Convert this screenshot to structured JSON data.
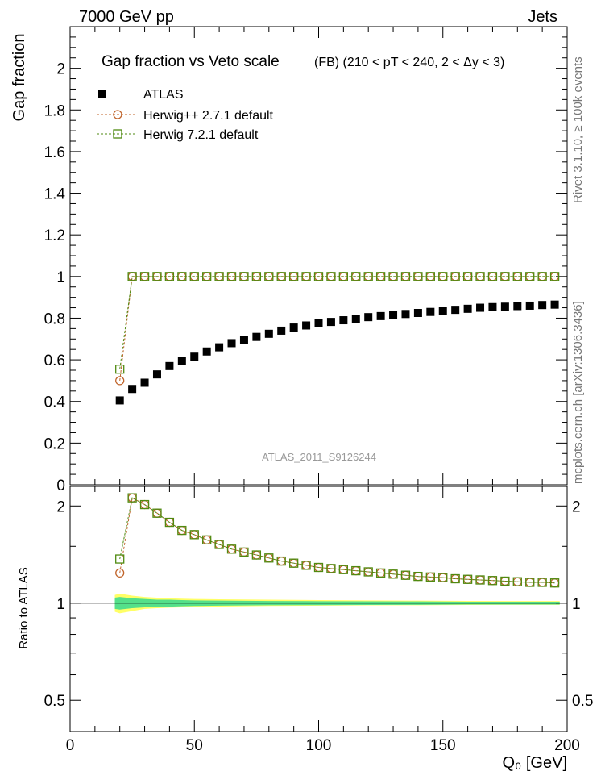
{
  "header": {
    "left": "7000 GeV pp",
    "right": "Jets"
  },
  "side_labels": {
    "top": "Rivet 3.1.10, ≥ 100k events",
    "bottom": "mcplots.cern.ch [arXiv:1306.3436]"
  },
  "watermark": "ATLAS_2011_S9126244",
  "colors": {
    "atlas": "#000000",
    "herwigpp": "#c0642b",
    "herwig7": "#4f8a10",
    "band_inner": "#54e08a",
    "band_outer": "#ffff66"
  },
  "chart_data": [
    {
      "type": "scatter",
      "title": "Gap fraction vs Veto scale",
      "subtitle": "(FB) (210 < pT < 240, 2 < Δy < 3)",
      "xlabel": "",
      "ylabel": "Gap fraction",
      "xlim": [
        0,
        200
      ],
      "ylim": [
        0,
        2.2
      ],
      "y_ticks": [
        "0",
        "0.2",
        "0.4",
        "0.6",
        "0.8",
        "1",
        "1.2",
        "1.4",
        "1.6",
        "1.8",
        "2"
      ],
      "legend_position": "top-left",
      "x": [
        20,
        25,
        30,
        35,
        40,
        45,
        50,
        55,
        60,
        65,
        70,
        75,
        80,
        85,
        90,
        95,
        100,
        105,
        110,
        115,
        120,
        125,
        130,
        135,
        140,
        145,
        150,
        155,
        160,
        165,
        170,
        175,
        180,
        185,
        190,
        195
      ],
      "series": [
        {
          "name": "ATLAS",
          "marker": "filled-square",
          "line": false,
          "values": [
            0.405,
            0.46,
            0.49,
            0.53,
            0.57,
            0.595,
            0.615,
            0.64,
            0.66,
            0.68,
            0.695,
            0.71,
            0.725,
            0.74,
            0.755,
            0.765,
            0.775,
            0.782,
            0.79,
            0.797,
            0.805,
            0.81,
            0.815,
            0.82,
            0.825,
            0.83,
            0.835,
            0.84,
            0.845,
            0.85,
            0.853,
            0.855,
            0.858,
            0.86,
            0.863,
            0.865
          ]
        },
        {
          "name": "Herwig++ 2.7.1 default",
          "marker": "open-circle",
          "line": true,
          "values": [
            0.5,
            1,
            1,
            1,
            1,
            1,
            1,
            1,
            1,
            1,
            1,
            1,
            1,
            1,
            1,
            1,
            1,
            1,
            1,
            1,
            1,
            1,
            1,
            1,
            1,
            1,
            1,
            1,
            1,
            1,
            1,
            1,
            1,
            1,
            1,
            1
          ]
        },
        {
          "name": "Herwig 7.2.1 default",
          "marker": "open-square",
          "line": true,
          "values": [
            0.555,
            1,
            1,
            1,
            1,
            1,
            1,
            1,
            1,
            1,
            1,
            1,
            1,
            1,
            1,
            1,
            1,
            1,
            1,
            1,
            1,
            1,
            1,
            1,
            1,
            1,
            1,
            1,
            1,
            1,
            1,
            1,
            1,
            1,
            1,
            1
          ]
        }
      ]
    },
    {
      "type": "scatter",
      "title": "",
      "xlabel": "Q₀ [GeV]",
      "ylabel": "Ratio to ATLAS",
      "xlim": [
        0,
        200
      ],
      "ylim": [
        0.4,
        2.3
      ],
      "y_scale": "log",
      "x_ticks": [
        "0",
        "50",
        "100",
        "150",
        "200"
      ],
      "y_ticks": [
        "0.5",
        "1",
        "2"
      ],
      "x": [
        20,
        25,
        30,
        35,
        40,
        45,
        50,
        55,
        60,
        65,
        70,
        75,
        80,
        85,
        90,
        95,
        100,
        105,
        110,
        115,
        120,
        125,
        130,
        135,
        140,
        145,
        150,
        155,
        160,
        165,
        170,
        175,
        180,
        185,
        190,
        195
      ],
      "series": [
        {
          "name": "Herwig++ 2.7.1 default",
          "marker": "open-circle",
          "line": true,
          "values": [
            1.24,
            2.12,
            2.02,
            1.9,
            1.78,
            1.68,
            1.63,
            1.57,
            1.52,
            1.47,
            1.44,
            1.41,
            1.38,
            1.35,
            1.33,
            1.31,
            1.29,
            1.28,
            1.27,
            1.26,
            1.25,
            1.24,
            1.23,
            1.22,
            1.21,
            1.205,
            1.2,
            1.19,
            1.185,
            1.18,
            1.175,
            1.17,
            1.165,
            1.16,
            1.16,
            1.155
          ]
        },
        {
          "name": "Herwig 7.2.1 default",
          "marker": "open-square",
          "line": true,
          "values": [
            1.37,
            2.12,
            2.02,
            1.9,
            1.78,
            1.68,
            1.63,
            1.57,
            1.52,
            1.47,
            1.44,
            1.41,
            1.38,
            1.35,
            1.33,
            1.31,
            1.29,
            1.28,
            1.27,
            1.26,
            1.25,
            1.24,
            1.23,
            1.22,
            1.21,
            1.205,
            1.2,
            1.19,
            1.185,
            1.18,
            1.175,
            1.17,
            1.165,
            1.16,
            1.16,
            1.155
          ]
        }
      ],
      "band": {
        "x": [
          18,
          20,
          25,
          30,
          35,
          40,
          45,
          50,
          60,
          80,
          100,
          120,
          140,
          160,
          180,
          197
        ],
        "inner_low": [
          0.96,
          0.955,
          0.965,
          0.97,
          0.975,
          0.975,
          0.978,
          0.98,
          0.982,
          0.985,
          0.986,
          0.987,
          0.988,
          0.99,
          0.99,
          0.99
        ],
        "inner_high": [
          1.04,
          1.045,
          1.035,
          1.03,
          1.025,
          1.025,
          1.022,
          1.02,
          1.018,
          1.015,
          1.014,
          1.013,
          1.012,
          1.01,
          1.01,
          1.01
        ],
        "outer_low": [
          0.94,
          0.93,
          0.945,
          0.96,
          0.965,
          0.968,
          0.97,
          0.972,
          0.976,
          0.98,
          0.982,
          0.984,
          0.985,
          0.987,
          0.988,
          0.988
        ],
        "outer_high": [
          1.06,
          1.07,
          1.055,
          1.045,
          1.04,
          1.035,
          1.032,
          1.03,
          1.028,
          1.025,
          1.022,
          1.02,
          1.018,
          1.016,
          1.015,
          1.015
        ]
      }
    }
  ]
}
